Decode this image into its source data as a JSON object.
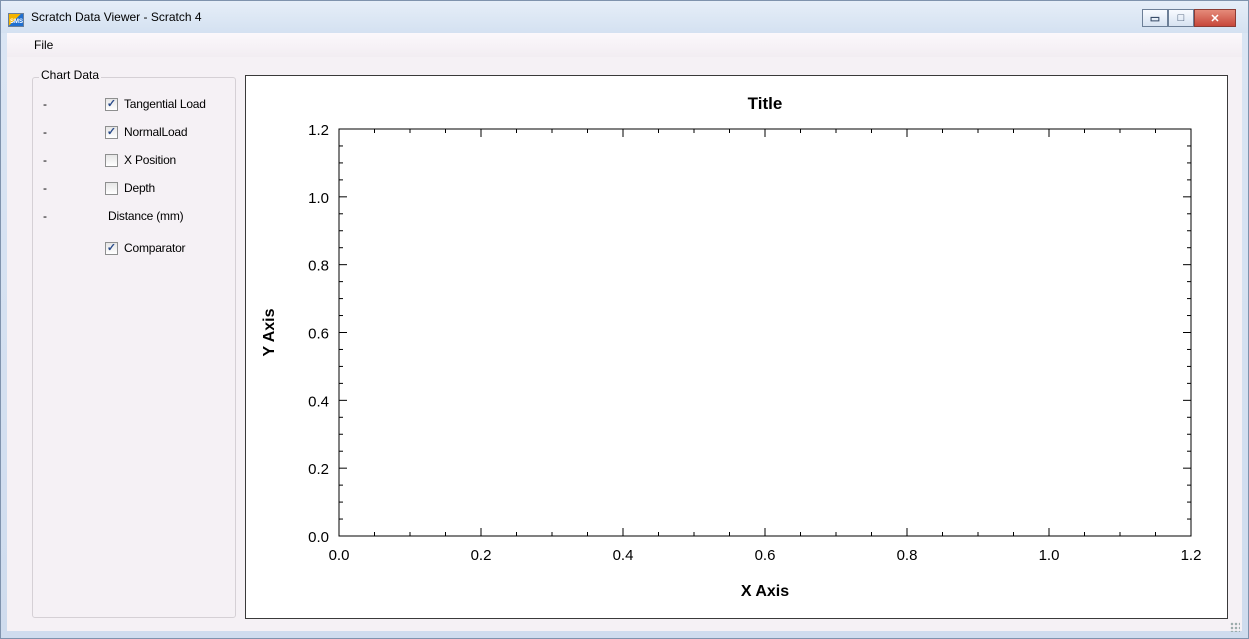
{
  "window": {
    "title": "Scratch Data Viewer - Scratch 4",
    "app_icon_text": "SMS"
  },
  "window_controls": {
    "minimize": "▭",
    "maximize": "□",
    "close": "✕"
  },
  "menu": {
    "items": [
      "File"
    ]
  },
  "chart_data_group": {
    "title": "Chart Data",
    "rows": [
      {
        "dash": "-",
        "label": "Tangential Load",
        "checked": true
      },
      {
        "dash": "-",
        "label": "NormalLoad",
        "checked": true
      },
      {
        "dash": "-",
        "label": "X Position",
        "checked": false
      },
      {
        "dash": "-",
        "label": "Depth",
        "checked": false
      },
      {
        "dash": "-",
        "label": "Distance (mm)",
        "checked": null
      },
      {
        "dash": "",
        "label": "Comparator",
        "checked": true
      }
    ]
  },
  "chart_data": {
    "type": "line",
    "title": "Title",
    "xlabel": "X Axis",
    "ylabel": "Y Axis",
    "xlim": [
      0.0,
      1.2
    ],
    "ylim": [
      0.0,
      1.2
    ],
    "x_ticks": [
      "0.0",
      "0.2",
      "0.4",
      "0.6",
      "0.8",
      "1.0",
      "1.2"
    ],
    "y_ticks": [
      "0.0",
      "0.2",
      "0.4",
      "0.6",
      "0.8",
      "1.0",
      "1.2"
    ],
    "series": [],
    "grid": false
  }
}
